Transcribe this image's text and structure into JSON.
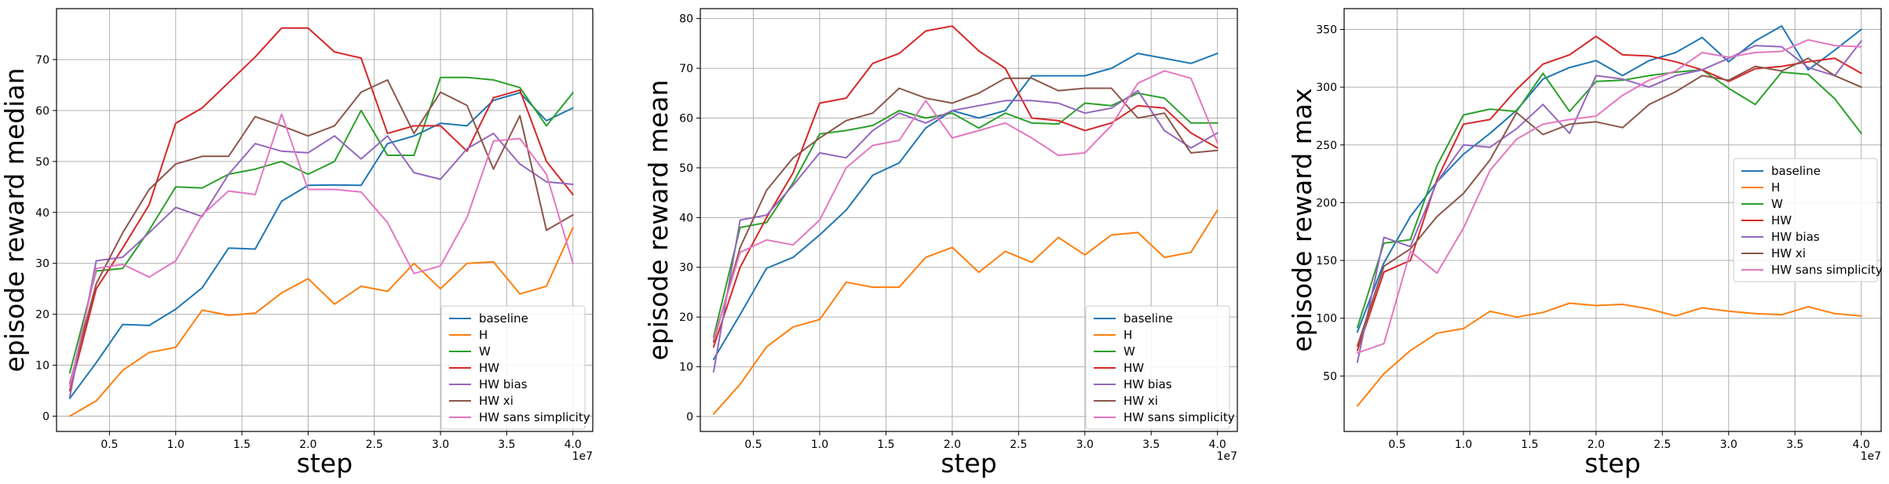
{
  "colors": {
    "baseline": "#1f77b4",
    "H": "#ff7f0e",
    "W": "#2ca02c",
    "HW": "#d62728",
    "HW bias": "#9467bd",
    "HW xi": "#8c564b",
    "HW sans simplicity": "#e377c2"
  },
  "chart_data": [
    {
      "type": "line",
      "xlabel": "step",
      "ylabel": "episode reward median",
      "x_offset_label": "1e7",
      "xlim": [
        0.1,
        4.15
      ],
      "ylim": [
        -3,
        80
      ],
      "xticks": [
        "0.5",
        "1.0",
        "1.5",
        "2.0",
        "2.5",
        "3.0",
        "3.5",
        "4.0"
      ],
      "yticks": [
        0,
        10,
        20,
        30,
        40,
        50,
        60,
        70
      ],
      "grid": true,
      "legend_position": "lower-right",
      "x": [
        0.2,
        0.4,
        0.6,
        0.8,
        1.0,
        1.2,
        1.4,
        1.6,
        1.8,
        2.0,
        2.2,
        2.4,
        2.6,
        2.8,
        3.0,
        3.2,
        3.4,
        3.6,
        3.8,
        4.0
      ],
      "series": [
        {
          "name": "baseline",
          "values": [
            3.5,
            10.5,
            18,
            17.8,
            21,
            25.2,
            33,
            32.8,
            42.2,
            45.3,
            45.4,
            45.3,
            53.5,
            55,
            57.5,
            57,
            62,
            63.5,
            58,
            60.5
          ]
        },
        {
          "name": "H",
          "values": [
            0,
            3,
            9,
            12.5,
            13.5,
            20.8,
            19.8,
            20.2,
            24.2,
            27,
            22,
            25.5,
            24.5,
            30,
            25,
            30,
            30.3,
            24,
            25.5,
            37
          ]
        },
        {
          "name": "W",
          "values": [
            8.5,
            28.5,
            29,
            36.5,
            45,
            44.8,
            47.5,
            48.5,
            50,
            47.5,
            50,
            60,
            51.2,
            51.2,
            66.5,
            66.5,
            66,
            64.5,
            57,
            63.5
          ]
        },
        {
          "name": "HW",
          "values": [
            5,
            25,
            33,
            41.5,
            57.5,
            60.5,
            65.5,
            70.5,
            76.2,
            76.2,
            71.5,
            70.3,
            55.5,
            57,
            57,
            52,
            62.5,
            64,
            50,
            43.5
          ]
        },
        {
          "name": "HW bias",
          "values": [
            3.8,
            30.5,
            31.2,
            36,
            41,
            39.2,
            47.5,
            53.5,
            52,
            51.7,
            55,
            50.5,
            55,
            47.8,
            46.5,
            52.5,
            55.5,
            49.5,
            46,
            45.5
          ]
        },
        {
          "name": "HW xi",
          "values": [
            6.5,
            26,
            36,
            44.5,
            49.5,
            51,
            51,
            58.8,
            57,
            55,
            57,
            63.6,
            66,
            55.5,
            63.6,
            61,
            48.5,
            59,
            36.5,
            39.5
          ]
        },
        {
          "name": "HW sans simplicity",
          "values": [
            6,
            29,
            29.8,
            27.3,
            30.5,
            39.5,
            44.2,
            43.5,
            59.3,
            44.5,
            44.5,
            44,
            38,
            28,
            29.5,
            39,
            54,
            54.5,
            47.5,
            30
          ]
        }
      ]
    },
    {
      "type": "line",
      "xlabel": "step",
      "ylabel": "episode reward mean",
      "x_offset_label": "1e7",
      "xlim": [
        0.1,
        4.15
      ],
      "ylim": [
        -3,
        82
      ],
      "xticks": [
        "0.5",
        "1.0",
        "1.5",
        "2.0",
        "2.5",
        "3.0",
        "3.5",
        "4.0"
      ],
      "yticks": [
        0,
        10,
        20,
        30,
        40,
        50,
        60,
        70,
        80
      ],
      "grid": true,
      "legend_position": "lower-right",
      "x": [
        0.2,
        0.4,
        0.6,
        0.8,
        1.0,
        1.2,
        1.4,
        1.6,
        1.8,
        2.0,
        2.2,
        2.4,
        2.6,
        2.8,
        3.0,
        3.2,
        3.4,
        3.6,
        3.8,
        4.0
      ],
      "series": [
        {
          "name": "baseline",
          "values": [
            11.5,
            20.5,
            29.8,
            32,
            36.5,
            41.5,
            48.5,
            51,
            58,
            61.5,
            60,
            61.5,
            68.5,
            68.5,
            68.5,
            70,
            73,
            72,
            71,
            73
          ]
        },
        {
          "name": "H",
          "values": [
            0.5,
            6.5,
            14,
            18,
            19.5,
            27,
            26,
            26,
            32,
            34,
            29,
            33.2,
            31,
            36,
            32.5,
            36.5,
            37,
            32,
            33,
            41.5
          ]
        },
        {
          "name": "W",
          "values": [
            16,
            38,
            39,
            47,
            56.8,
            57.5,
            58.5,
            61.5,
            60,
            61,
            58,
            61,
            59,
            58.8,
            63,
            62.5,
            65,
            64,
            59,
            59
          ]
        },
        {
          "name": "HW",
          "values": [
            14,
            30,
            40,
            49,
            63,
            64,
            71,
            73,
            77.5,
            78.5,
            73.5,
            70,
            60,
            59.5,
            57.5,
            59,
            62.5,
            62,
            57,
            54
          ]
        },
        {
          "name": "HW bias",
          "values": [
            9,
            39.5,
            40.5,
            46.5,
            53,
            52,
            57.5,
            61,
            59,
            61.5,
            62.5,
            63.5,
            63.5,
            63,
            61,
            62,
            65.5,
            57.5,
            54,
            57
          ]
        },
        {
          "name": "HW xi",
          "values": [
            15,
            34,
            45.5,
            52,
            56,
            59.5,
            61,
            66,
            64,
            63,
            65,
            68,
            68,
            65.5,
            66,
            66,
            60,
            61,
            53,
            53.5
          ]
        },
        {
          "name": "HW sans simplicity",
          "values": [
            15.5,
            33,
            35.5,
            34.5,
            39.5,
            50,
            54.5,
            55.5,
            63.5,
            56,
            57.5,
            59,
            56,
            52.5,
            53,
            58.5,
            67,
            69.5,
            68,
            55
          ]
        }
      ]
    },
    {
      "type": "line",
      "xlabel": "step",
      "ylabel": "episode reward max",
      "x_offset_label": "1e7",
      "xlim": [
        0.1,
        4.15
      ],
      "ylim": [
        2,
        368
      ],
      "xticks": [
        "0.5",
        "1.0",
        "1.5",
        "2.0",
        "2.5",
        "3.0",
        "3.5",
        "4.0"
      ],
      "yticks": [
        50,
        100,
        150,
        200,
        250,
        300,
        350
      ],
      "grid": true,
      "legend_position": "center-right",
      "x": [
        0.2,
        0.4,
        0.6,
        0.8,
        1.0,
        1.2,
        1.4,
        1.6,
        1.8,
        2.0,
        2.2,
        2.4,
        2.6,
        2.8,
        3.0,
        3.2,
        3.4,
        3.6,
        3.8,
        4.0
      ],
      "series": [
        {
          "name": "baseline",
          "values": [
            88,
            148,
            188,
            218,
            242,
            260,
            280,
            307,
            317,
            323,
            310,
            323,
            330,
            343,
            322,
            340,
            353,
            315,
            332,
            350
          ]
        },
        {
          "name": "H",
          "values": [
            24,
            52,
            72,
            87,
            91,
            106,
            101,
            105,
            113,
            111,
            112,
            108,
            102,
            109,
            106,
            104,
            103,
            110,
            104,
            102
          ]
        },
        {
          "name": "W",
          "values": [
            92,
            165,
            168,
            232,
            276,
            281,
            279,
            312,
            279,
            305,
            306,
            310,
            313,
            315,
            299,
            285,
            313,
            311,
            290,
            260
          ]
        },
        {
          "name": "HW",
          "values": [
            72,
            140,
            150,
            220,
            268,
            272,
            298,
            320,
            328,
            344,
            328,
            327,
            322,
            315,
            305,
            316,
            318,
            322,
            325,
            312
          ]
        },
        {
          "name": "HW bias",
          "values": [
            62,
            170,
            162,
            218,
            250,
            248,
            264,
            285,
            260,
            310,
            307,
            300,
            310,
            315,
            325,
            336,
            335,
            317,
            310,
            340
          ]
        },
        {
          "name": "HW xi",
          "values": [
            76,
            145,
            160,
            188,
            208,
            237,
            278,
            259,
            268,
            270,
            265,
            285,
            296,
            310,
            306,
            318,
            314,
            325,
            310,
            300
          ]
        },
        {
          "name": "HW sans simplicity",
          "values": [
            70,
            78,
            158,
            139,
            178,
            228,
            255,
            268,
            272,
            275,
            293,
            306,
            314,
            330,
            326,
            330,
            331,
            341,
            336,
            335
          ]
        }
      ]
    }
  ]
}
